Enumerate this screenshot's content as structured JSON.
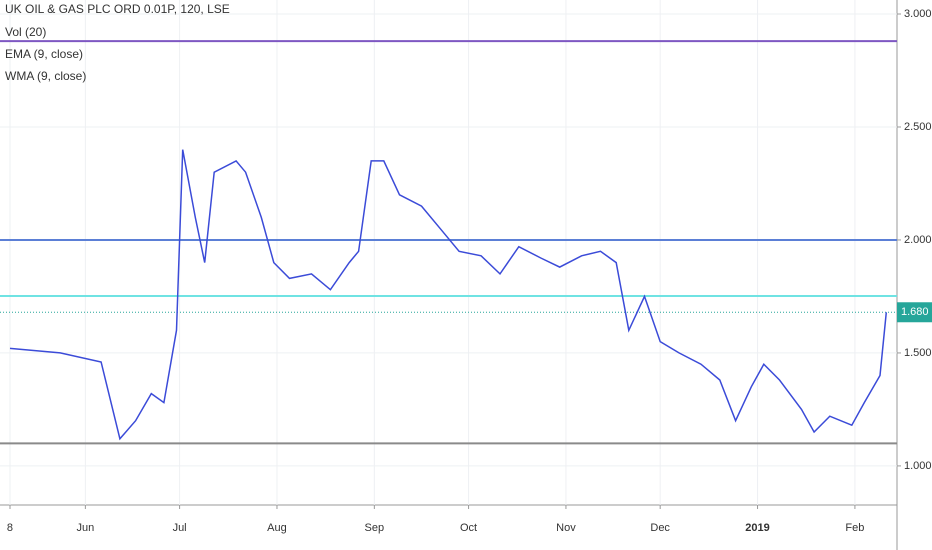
{
  "chart_data": {
    "type": "line",
    "title": "UK OIL & GAS PLC ORD 0.01P, 120, LSE",
    "legend": [
      "Vol (20)",
      "EMA (9, close)",
      "WMA (9, close)"
    ],
    "color": "#3b4bd8",
    "x": [
      0,
      16,
      29,
      35,
      40,
      45,
      49,
      53,
      55,
      59,
      62,
      65,
      72,
      75,
      80,
      84,
      89,
      96,
      102,
      108,
      111,
      115,
      119,
      124,
      131,
      137,
      143,
      150,
      156,
      162,
      169,
      175,
      182,
      188,
      193,
      197,
      202,
      207,
      213,
      220,
      226,
      231,
      236,
      240,
      245,
      252,
      256,
      261,
      268,
      272,
      277,
      279
    ],
    "values": [
      1.52,
      1.5,
      1.46,
      1.12,
      1.2,
      1.32,
      1.28,
      1.6,
      2.4,
      2.1,
      1.9,
      2.3,
      2.35,
      2.3,
      2.1,
      1.9,
      1.83,
      1.85,
      1.78,
      1.9,
      1.95,
      2.35,
      2.35,
      2.2,
      2.15,
      2.05,
      1.95,
      1.93,
      1.85,
      1.97,
      1.92,
      1.88,
      1.93,
      1.95,
      1.9,
      1.6,
      1.75,
      1.55,
      1.5,
      1.45,
      1.38,
      1.2,
      1.35,
      1.45,
      1.38,
      1.25,
      1.15,
      1.22,
      1.18,
      1.28,
      1.4,
      1.68
    ],
    "xlim": [
      -3.18,
      282.4
    ],
    "xticks": [
      {
        "value": 0,
        "label": "8"
      },
      {
        "value": 24,
        "label": "Jun"
      },
      {
        "value": 54,
        "label": "Jul"
      },
      {
        "value": 85,
        "label": "Aug"
      },
      {
        "value": 116,
        "label": "Sep"
      },
      {
        "value": 146,
        "label": "Oct"
      },
      {
        "value": 177,
        "label": "Nov"
      },
      {
        "value": 207,
        "label": "Dec"
      },
      {
        "value": 238,
        "label": "2019"
      },
      {
        "value": 269,
        "label": "Feb"
      }
    ],
    "ylim": [
      0.827,
      3.062
    ],
    "yticks": [
      {
        "value": 1,
        "label": "1.000"
      },
      {
        "value": 1.5,
        "label": "1.500"
      },
      {
        "value": 2,
        "label": "2.000"
      },
      {
        "value": 2.5,
        "label": "2.500"
      },
      {
        "value": 3,
        "label": "3.000"
      }
    ],
    "grid": true,
    "levels": [
      {
        "value": 2.88,
        "color": "#7e57c2"
      },
      {
        "value": 2.0,
        "color": "#5b7fd6"
      },
      {
        "value": 1.752,
        "color": "#6fe3e3"
      },
      {
        "value": 1.1,
        "color": "#8a8a8a"
      }
    ],
    "last_price": {
      "value": 1.68,
      "label": "1.680",
      "color": "#26a69a"
    }
  }
}
